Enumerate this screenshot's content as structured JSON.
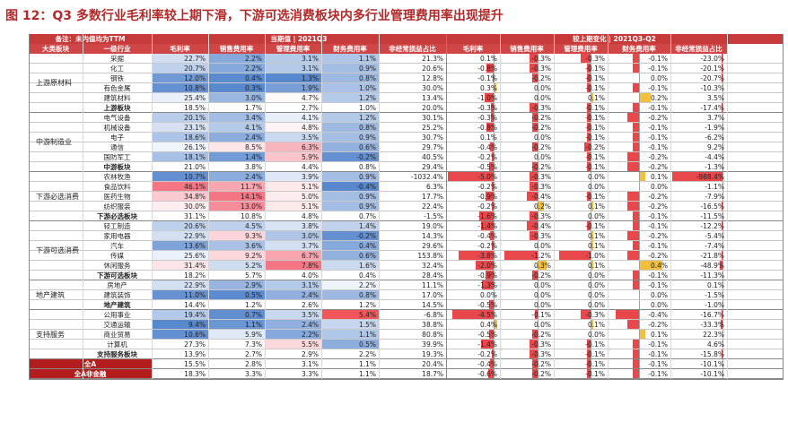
{
  "title": "图 12：Q3 多数行业毛利率较上期下滑，下游可选消费板块内多行业管理费用率出现提升",
  "header": {
    "note": "备注：未内值均为TTM",
    "current_group": "当期值 | 2021Q3",
    "change_group": "较上期变化 | 2021Q3-Q2",
    "col_category": "大类板块",
    "col_industry": "一级行业",
    "metrics": [
      "毛利率",
      "销售费用率",
      "管理费用率",
      "财务费用率",
      "非经常损益占比"
    ]
  },
  "groups": [
    {
      "name": "上游原材料",
      "rows": [
        {
          "industry": "采掘",
          "current": [
            "22.7%",
            "2.2%",
            "3.1%",
            "1.1%",
            "21.3%"
          ],
          "change": [
            "0.1%",
            "-0.3%",
            "-0.3%",
            "-0.1%",
            "-23.0%"
          ]
        },
        {
          "industry": "化工",
          "current": [
            "20.7%",
            "2.2%",
            "3.1%",
            "0.9%",
            "20.6%"
          ],
          "change": [
            "-0.8%",
            "-0.3%",
            "-0.1%",
            "-0.1%",
            "-20.1%"
          ]
        },
        {
          "industry": "钢铁",
          "current": [
            "12.0%",
            "0.4%",
            "1.3%",
            "0.8%",
            "12.8%"
          ],
          "change": [
            "-0.1%",
            "-0.2%",
            "-0.1%",
            "0.0%",
            "-20.7%"
          ]
        },
        {
          "industry": "有色金属",
          "current": [
            "10.8%",
            "0.3%",
            "1.9%",
            "1.0%",
            "30.0%"
          ],
          "change": [
            "0.3%",
            "0.0%",
            "-0.1%",
            "-0.1%",
            "-10.3%"
          ]
        },
        {
          "industry": "建筑材料",
          "current": [
            "25.4%",
            "3.0%",
            "4.7%",
            "1.2%",
            "13.4%"
          ],
          "change": [
            "-1.0%",
            "0.0%",
            "0.1%",
            "0.2%",
            "3.5%"
          ]
        }
      ],
      "subtotal": {
        "label": "上游板块",
        "current": [
          "18.5%",
          "1.7%",
          "2.7%",
          "1.0%",
          "20.0%"
        ],
        "change": [
          "-0.3%",
          "-0.3%",
          "-0.1%",
          "-0.1%",
          "-17.4%"
        ]
      }
    },
    {
      "name": "中游制造业",
      "rows": [
        {
          "industry": "电气设备",
          "current": [
            "20.1%",
            "3.4%",
            "4.1%",
            "1.2%",
            "30.1%"
          ],
          "change": [
            "-0.3%",
            "-0.2%",
            "-0.1%",
            "-0.2%",
            "3.7%"
          ]
        },
        {
          "industry": "机械设备",
          "current": [
            "23.1%",
            "4.1%",
            "4.8%",
            "0.8%",
            "25.2%"
          ],
          "change": [
            "-0.8%",
            "-0.2%",
            "-0.1%",
            "-0.1%",
            "-1.9%"
          ]
        },
        {
          "industry": "电子",
          "current": [
            "18.6%",
            "2.4%",
            "3.5%",
            "0.9%",
            "30.7%"
          ],
          "change": [
            "0.1%",
            "0.0%",
            "-0.1%",
            "-0.1%",
            "-6.2%"
          ]
        },
        {
          "industry": "通信",
          "current": [
            "26.1%",
            "8.5%",
            "6.3%",
            "0.6%",
            "29.7%"
          ],
          "change": [
            "-0.4%",
            "-0.2%",
            "-0.2%",
            "-0.1%",
            "9.2%"
          ]
        },
        {
          "industry": "国防军工",
          "current": [
            "18.1%",
            "1.4%",
            "5.9%",
            "-0.2%",
            "40.5%"
          ],
          "change": [
            "-0.2%",
            "0.0%",
            "-0.1%",
            "-0.2%",
            "-4.4%"
          ]
        }
      ],
      "subtotal": {
        "label": "中游板块",
        "current": [
          "21.0%",
          "3.8%",
          "4.4%",
          "0.8%",
          "29.4%"
        ],
        "change": [
          "-0.5%",
          "-0.2%",
          "-0.1%",
          "-0.2%",
          "-1.3%"
        ]
      }
    },
    {
      "name": "下游必选消费",
      "rows": [
        {
          "industry": "农林牧渔",
          "current": [
            "10.7%",
            "2.4%",
            "3.9%",
            "0.9%",
            "-1032.4%"
          ],
          "change": [
            "-5.0%",
            "-0.3%",
            "0.0%",
            "0.1%",
            "-988.4%"
          ]
        },
        {
          "industry": "食品饮料",
          "current": [
            "46.1%",
            "11.7%",
            "5.1%",
            "-0.4%",
            "6.3%"
          ],
          "change": [
            "-0.2%",
            "-0.3%",
            "0.0%",
            "0.0%",
            "-1.1%"
          ]
        },
        {
          "industry": "医药生物",
          "current": [
            "34.8%",
            "14.1%",
            "5.0%",
            "0.9%",
            "17.7%"
          ],
          "change": [
            "-0.9%",
            "-0.4%",
            "-0.1%",
            "-0.2%",
            "-7.9%"
          ]
        },
        {
          "industry": "纺织服装",
          "current": [
            "30.0%",
            "13.0%",
            "5.1%",
            "0.9%",
            "22.4%"
          ],
          "change": [
            "-0.2%",
            "0.2%",
            "0.1%",
            "-0.2%",
            "-16.5%"
          ]
        }
      ],
      "subtotal": {
        "label": "下游必选板块",
        "current": [
          "31.1%",
          "10.8%",
          "4.8%",
          "0.7%",
          "-1.5%"
        ],
        "change": [
          "-1.6%",
          "-0.3%",
          "0.0%",
          "-0.1%",
          "-11.5%"
        ]
      }
    },
    {
      "name": "下游可选消费",
      "rows": [
        {
          "industry": "轻工制造",
          "current": [
            "20.6%",
            "4.5%",
            "3.8%",
            "1.4%",
            "19.0%"
          ],
          "change": [
            "-1.4%",
            "-0.4%",
            "-0.1%",
            "-0.1%",
            "-12.2%"
          ]
        },
        {
          "industry": "家用电器",
          "current": [
            "22.9%",
            "9.3%",
            "3.0%",
            "-0.2%",
            "14.3%"
          ],
          "change": [
            "-0.4%",
            "-0.3%",
            "0.1%",
            "-0.2%",
            "-5.4%"
          ]
        },
        {
          "industry": "汽车",
          "current": [
            "13.6%",
            "3.6%",
            "3.7%",
            "0.4%",
            "29.6%"
          ],
          "change": [
            "-0.2%",
            "0.0%",
            "0.1%",
            "-0.1%",
            "-7.4%"
          ]
        },
        {
          "industry": "传媒",
          "current": [
            "25.6%",
            "9.2%",
            "6.7%",
            "0.6%",
            "153.8%"
          ],
          "change": [
            "-3.8%",
            "-1.2%",
            "-1.0%",
            "-0.2%",
            "-21.8%"
          ]
        },
        {
          "industry": "休闲服务",
          "current": [
            "31.4%",
            "5.2%",
            "7.8%",
            "1.6%",
            "32.4%"
          ],
          "change": [
            "-2.0%",
            "0.3%",
            "0.1%",
            "0.4%",
            "-48.9%"
          ]
        }
      ],
      "subtotal": {
        "label": "下游可选板块",
        "current": [
          "18.2%",
          "5.7%",
          "4.0%",
          "0.4%",
          "28.4%"
        ],
        "change": [
          "-0.9%",
          "-0.2%",
          "0.0%",
          "-0.1%",
          "-11.3%"
        ]
      }
    },
    {
      "name": "地产建筑",
      "rows": [
        {
          "industry": "房地产",
          "current": [
            "22.9%",
            "2.9%",
            "3.1%",
            "2.2%",
            "11.1%"
          ],
          "change": [
            "-1.3%",
            "0.0%",
            "0.0%",
            "-0.1%",
            "0.1%"
          ]
        },
        {
          "industry": "建筑装饰",
          "current": [
            "11.0%",
            "0.5%",
            "2.4%",
            "0.8%",
            "17.0%"
          ],
          "change": [
            "0.0%",
            "0.0%",
            "0.0%",
            "0.0%",
            "-1.5%"
          ]
        }
      ],
      "subtotal": {
        "label": "地产建筑",
        "current": [
          "14.4%",
          "1.2%",
          "2.6%",
          "1.2%",
          "14.5%"
        ],
        "change": [
          "-0.5%",
          "0.0%",
          "0.0%",
          "0.0%",
          "-1.0%"
        ]
      }
    },
    {
      "name": "支持服务",
      "rows": [
        {
          "industry": "公用事业",
          "current": [
            "19.4%",
            "0.7%",
            "3.5%",
            "5.4%",
            "-6.8%"
          ],
          "change": [
            "-4.5%",
            "-0.1%",
            "-0.3%",
            "-0.4%",
            "-16.7%"
          ]
        },
        {
          "industry": "交通运输",
          "current": [
            "9.4%",
            "1.1%",
            "2.4%",
            "1.5%",
            "38.8%"
          ],
          "change": [
            "0.4%",
            "0.0%",
            "0.1%",
            "-0.2%",
            "-33.3%"
          ]
        },
        {
          "industry": "商业贸易",
          "current": [
            "10.6%",
            "5.9%",
            "2.2%",
            "1.1%",
            "80.8%"
          ],
          "change": [
            "-0.5%",
            "-0.2%",
            "0.0%",
            "0.1%",
            "22.3%"
          ]
        },
        {
          "industry": "计算机",
          "current": [
            "27.3%",
            "7.3%",
            "5.5%",
            "0.5%",
            "39.9%"
          ],
          "change": [
            "-1.4%",
            "-0.3%",
            "-0.1%",
            "-0.1%",
            "4.6%"
          ]
        }
      ],
      "subtotal": {
        "label": "支持服务板块",
        "current": [
          "13.9%",
          "2.7%",
          "2.9%",
          "2.2%",
          "19.3%"
        ],
        "change": [
          "-0.2%",
          "-0.3%",
          "-0.1%",
          "-0.1%",
          "-15.8%"
        ]
      }
    }
  ],
  "totals": [
    {
      "label": "全A",
      "current": [
        "15.5%",
        "2.8%",
        "3.1%",
        "1.1%",
        "20.4%"
      ],
      "change": [
        "-0.4%",
        "-0.2%",
        "-0.1%",
        "-0.1%",
        "-10.1%"
      ]
    },
    {
      "label": "全A非金融",
      "current": [
        "18.3%",
        "3.3%",
        "3.3%",
        "1.1%",
        "18.7%"
      ],
      "change": [
        "-0.6%",
        "-0.2%",
        "-0.1%",
        "-0.1%",
        "-10.1%"
      ]
    }
  ],
  "colors": {
    "header": "#c63a3a",
    "negative_bar": "#e8484c",
    "positive_bar": "#f3c03d",
    "total_row": "#b31d1d"
  }
}
